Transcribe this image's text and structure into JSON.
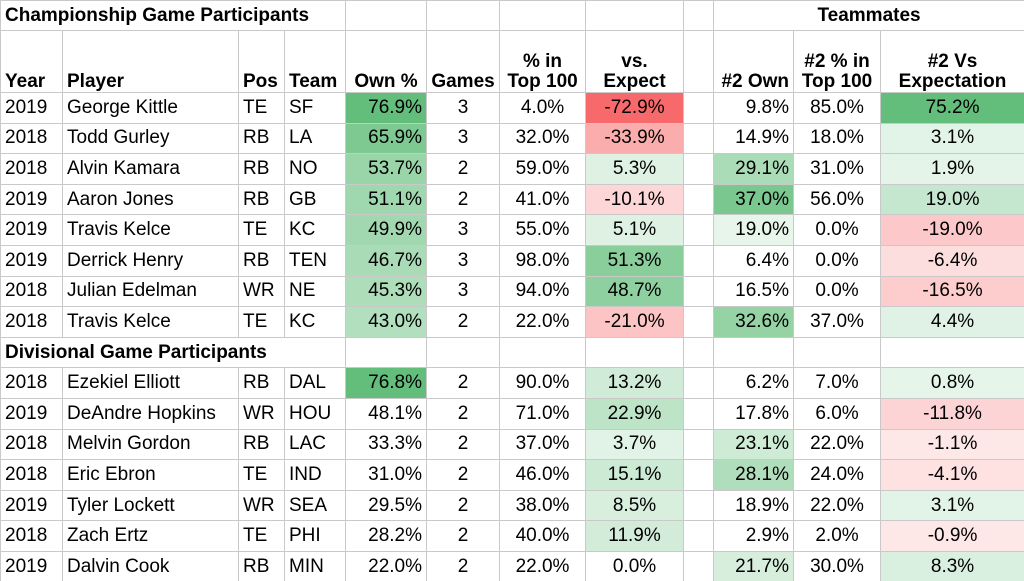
{
  "sections": {
    "championship": "Championship Game Participants",
    "divisional": "Divisional Game Participants",
    "teammates": "Teammates"
  },
  "headers": [
    "Year",
    "Player",
    "Pos",
    "Team",
    "Own %",
    "Games",
    "% in\nTop 100",
    "vs.\nExpect",
    "",
    "#2 Own",
    "#2 % in\nTop 100",
    "#2 Vs\nExpectation"
  ],
  "colors": {
    "green_dark": "#63be7b",
    "green_mid": "#a9dbb4",
    "green_light": "#e8f5eb",
    "red_dark": "#f8696b",
    "red_mid": "#fbaaaf",
    "red_light": "#fde6ea"
  },
  "championship_rows": [
    {
      "year": "2019",
      "player": "George Kittle",
      "pos": "TE",
      "team": "SF",
      "own": "76.9%",
      "games": "3",
      "top100": "4.0%",
      "vs": "-72.9%",
      "own2": "9.8%",
      "top2": "85.0%",
      "vs2": "75.2%"
    },
    {
      "year": "2018",
      "player": "Todd Gurley",
      "pos": "RB",
      "team": "LA",
      "own": "65.9%",
      "games": "3",
      "top100": "32.0%",
      "vs": "-33.9%",
      "own2": "14.9%",
      "top2": "18.0%",
      "vs2": "3.1%"
    },
    {
      "year": "2018",
      "player": "Alvin Kamara",
      "pos": "RB",
      "team": "NO",
      "own": "53.7%",
      "games": "2",
      "top100": "59.0%",
      "vs": "5.3%",
      "own2": "29.1%",
      "top2": "31.0%",
      "vs2": "1.9%"
    },
    {
      "year": "2019",
      "player": "Aaron Jones",
      "pos": "RB",
      "team": "GB",
      "own": "51.1%",
      "games": "2",
      "top100": "41.0%",
      "vs": "-10.1%",
      "own2": "37.0%",
      "top2": "56.0%",
      "vs2": "19.0%"
    },
    {
      "year": "2019",
      "player": "Travis Kelce",
      "pos": "TE",
      "team": "KC",
      "own": "49.9%",
      "games": "3",
      "top100": "55.0%",
      "vs": "5.1%",
      "own2": "19.0%",
      "top2": "0.0%",
      "vs2": "-19.0%"
    },
    {
      "year": "2019",
      "player": "Derrick Henry",
      "pos": "RB",
      "team": "TEN",
      "own": "46.7%",
      "games": "3",
      "top100": "98.0%",
      "vs": "51.3%",
      "own2": "6.4%",
      "top2": "0.0%",
      "vs2": "-6.4%"
    },
    {
      "year": "2018",
      "player": "Julian Edelman",
      "pos": "WR",
      "team": "NE",
      "own": "45.3%",
      "games": "3",
      "top100": "94.0%",
      "vs": "48.7%",
      "own2": "16.5%",
      "top2": "0.0%",
      "vs2": "-16.5%"
    },
    {
      "year": "2018",
      "player": "Travis Kelce",
      "pos": "TE",
      "team": "KC",
      "own": "43.0%",
      "games": "2",
      "top100": "22.0%",
      "vs": "-21.0%",
      "own2": "32.6%",
      "top2": "37.0%",
      "vs2": "4.4%"
    }
  ],
  "divisional_rows": [
    {
      "year": "2018",
      "player": "Ezekiel Elliott",
      "pos": "RB",
      "team": "DAL",
      "own": "76.8%",
      "games": "2",
      "top100": "90.0%",
      "vs": "13.2%",
      "own2": "6.2%",
      "top2": "7.0%",
      "vs2": "0.8%"
    },
    {
      "year": "2019",
      "player": "DeAndre Hopkins",
      "pos": "WR",
      "team": "HOU",
      "own": "48.1%",
      "games": "2",
      "top100": "71.0%",
      "vs": "22.9%",
      "own2": "17.8%",
      "top2": "6.0%",
      "vs2": "-11.8%"
    },
    {
      "year": "2018",
      "player": "Melvin Gordon",
      "pos": "RB",
      "team": "LAC",
      "own": "33.3%",
      "games": "2",
      "top100": "37.0%",
      "vs": "3.7%",
      "own2": "23.1%",
      "top2": "22.0%",
      "vs2": "-1.1%"
    },
    {
      "year": "2018",
      "player": "Eric Ebron",
      "pos": "TE",
      "team": "IND",
      "own": "31.0%",
      "games": "2",
      "top100": "46.0%",
      "vs": "15.1%",
      "own2": "28.1%",
      "top2": "24.0%",
      "vs2": "-4.1%"
    },
    {
      "year": "2019",
      "player": "Tyler Lockett",
      "pos": "WR",
      "team": "SEA",
      "own": "29.5%",
      "games": "2",
      "top100": "38.0%",
      "vs": "8.5%",
      "own2": "18.9%",
      "top2": "22.0%",
      "vs2": "3.1%"
    },
    {
      "year": "2018",
      "player": "Zach Ertz",
      "pos": "TE",
      "team": "PHI",
      "own": "28.2%",
      "games": "2",
      "top100": "40.0%",
      "vs": "11.9%",
      "own2": "2.9%",
      "top2": "2.0%",
      "vs2": "-0.9%"
    },
    {
      "year": "2019",
      "player": "Dalvin Cook",
      "pos": "RB",
      "team": "MIN",
      "own": "22.0%",
      "games": "2",
      "top100": "22.0%",
      "vs": "0.0%",
      "own2": "21.7%",
      "top2": "30.0%",
      "vs2": "8.3%"
    }
  ]
}
